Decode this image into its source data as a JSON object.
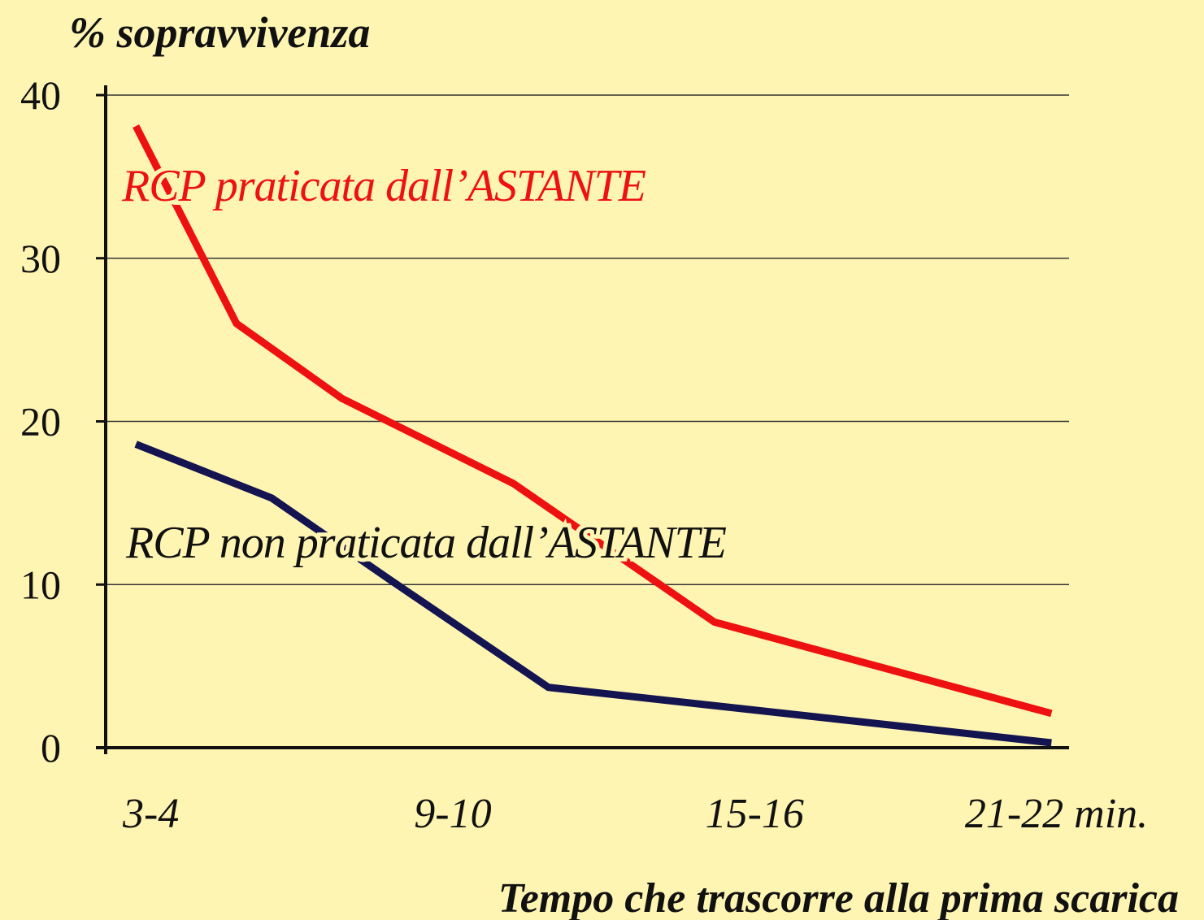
{
  "chart_data": {
    "type": "line",
    "title": "% sopravvivenza",
    "x_label": "Tempo che trascorre alla prima scarica",
    "xlim": [
      2.6,
      21.75
    ],
    "xticks": [
      {
        "value": 3.5,
        "label": "3-4"
      },
      {
        "value": 9.5,
        "label": "9-10"
      },
      {
        "value": 15.5,
        "label": "15-16"
      },
      {
        "value": 21.5,
        "label": "21-22 min."
      }
    ],
    "ylim": [
      0,
      40
    ],
    "yticks": [
      0,
      10,
      20,
      30,
      40
    ],
    "grid": true,
    "series": [
      {
        "name": "RCP praticata dall’ASTANTE",
        "color": "#ee1111",
        "x": [
          3.2,
          5.2,
          7.3,
          10.7,
          14.7,
          21.4
        ],
        "values": [
          38.1,
          26,
          21.4,
          16.2,
          7.7,
          2.1
        ]
      },
      {
        "name": "RCP non praticata dall’ASTANTE",
        "color": "#141450",
        "x": [
          3.2,
          5.9,
          8.2,
          11.4,
          21.4
        ],
        "values": [
          18.6,
          15.3,
          10.4,
          3.7,
          0.3
        ]
      }
    ]
  }
}
